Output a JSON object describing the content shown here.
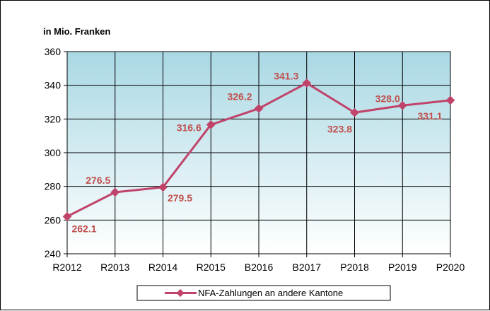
{
  "chart_data": {
    "type": "line",
    "ylabel": "in Mio. Franken",
    "categories": [
      "R2012",
      "R2013",
      "R2014",
      "R2015",
      "B2016",
      "B2017",
      "P2018",
      "P2019",
      "P2020"
    ],
    "series": [
      {
        "name": "NFA-Zahlungen an andere Kantone",
        "values": [
          262.1,
          276.5,
          279.5,
          316.6,
          326.2,
          341.3,
          323.8,
          328.0,
          331.1
        ],
        "labels": [
          "262.1",
          "276.5",
          "279.5",
          "316.6",
          "326.2",
          "341.3",
          "323.8",
          "328.0",
          "331.1"
        ],
        "color": "#c0436a"
      }
    ],
    "ylim": [
      240,
      360
    ],
    "yticks": [
      "240",
      "260",
      "280",
      "300",
      "320",
      "340",
      "360"
    ],
    "grid": true,
    "legend": "bottom",
    "colors": {
      "plot_gradient_top": "#a9d8e4",
      "plot_gradient_bottom": "#ffffff",
      "label_color": "#c0504d"
    }
  }
}
